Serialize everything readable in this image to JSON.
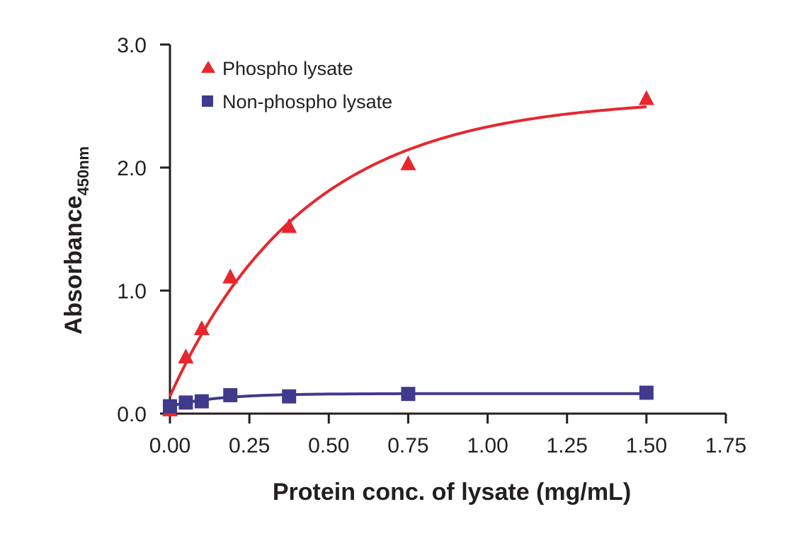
{
  "chart_data": {
    "type": "scatter",
    "xlabel": "Protein conc. of lysate (mg/mL)",
    "ylabel": "Absorbance",
    "ylabel_sub": "450nm",
    "xlim": [
      0,
      1.75
    ],
    "ylim": [
      0,
      3.0
    ],
    "x_ticks": [
      "0.00",
      "0.25",
      "0.50",
      "0.75",
      "1.00",
      "1.25",
      "1.50",
      "1.75"
    ],
    "y_ticks": [
      "0.0",
      "1.0",
      "2.0",
      "3.0"
    ],
    "grid": false,
    "legend_position": "top-left",
    "series": [
      {
        "name": "Phospho lysate",
        "marker": "triangle",
        "color": "#e8262d",
        "x": [
          0,
          0.05,
          0.1,
          0.19,
          0.375,
          0.75,
          1.5
        ],
        "y": [
          0.03,
          0.46,
          0.69,
          1.11,
          1.52,
          2.03,
          2.56
        ],
        "fit": "saturation"
      },
      {
        "name": "Non-phospho lysate",
        "marker": "square",
        "color": "#3f3a8c",
        "x": [
          0,
          0.05,
          0.1,
          0.19,
          0.375,
          0.75,
          1.5
        ],
        "y": [
          0.06,
          0.09,
          0.1,
          0.15,
          0.14,
          0.16,
          0.17
        ],
        "fit": "saturation"
      }
    ]
  }
}
